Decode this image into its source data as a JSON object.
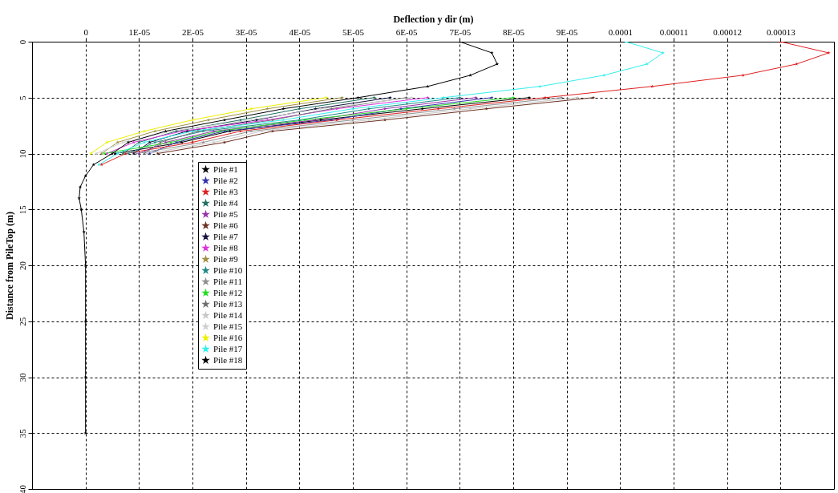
{
  "chart_data": {
    "type": "line",
    "xlabel": "Deflection y dir (m)",
    "ylabel": "Distance from PileTop (m)",
    "xlim": [
      -1e-05,
      0.00014
    ],
    "ylim": [
      40,
      0
    ],
    "xticks": [
      0,
      {
        "value": 1e-05,
        "label": "1E-05"
      },
      {
        "value": 2e-05,
        "label": "2E-05"
      },
      {
        "value": 3e-05,
        "label": "3E-05"
      },
      {
        "value": 4e-05,
        "label": "4E-05"
      },
      {
        "value": 5e-05,
        "label": "5E-05"
      },
      {
        "value": 6e-05,
        "label": "6E-05"
      },
      {
        "value": 7e-05,
        "label": "7E-05"
      },
      {
        "value": 8e-05,
        "label": "8E-05"
      },
      {
        "value": 9e-05,
        "label": "9E-05"
      },
      0.0001,
      0.00011,
      0.00012,
      0.00013
    ],
    "yticks": [
      0,
      5,
      10,
      15,
      20,
      25,
      30,
      35,
      40
    ],
    "grid": true,
    "legend": "top left",
    "marker": "star",
    "line_style": "solid",
    "series": [
      {
        "name": "Pile #1",
        "color": "#000000",
        "x": [
          null,
          null,
          null,
          null,
          null,
          8.3e-05,
          6.3e-05,
          4.4e-05,
          2.7e-05,
          1.8e-05,
          5.5e-06,
          null,
          null,
          null,
          null,
          null,
          null,
          null,
          null,
          null,
          null
        ],
        "values": [
          null,
          null,
          null,
          null,
          null,
          5,
          6,
          7,
          8,
          9,
          10,
          null,
          null,
          null,
          null,
          null,
          null,
          null,
          null,
          null,
          null
        ]
      },
      {
        "name": "Pile #2",
        "color": "#3333aa",
        "x": [
          null,
          null,
          null,
          null,
          null,
          7.6e-05,
          5.9e-05,
          4.6e-05,
          2.6e-05,
          1.7e-05,
          1.2e-05,
          null,
          null,
          null,
          null,
          null,
          null,
          null,
          null,
          null,
          null
        ],
        "values": [
          null,
          null,
          null,
          null,
          null,
          5,
          6,
          7,
          8,
          9,
          10,
          null,
          null,
          null,
          null,
          null,
          null,
          null,
          null,
          null,
          null
        ]
      },
      {
        "name": "Pile #3",
        "color": "#e02020",
        "x": [
          0.00013,
          0.000139,
          0.000133,
          0.000123,
          0.000106,
          8.6e-05,
          6.6e-05,
          4.7e-05,
          2.9e-05,
          2e-05,
          7.5e-06,
          3e-06,
          null,
          null,
          null,
          null,
          null,
          null,
          null,
          null,
          null
        ],
        "values": [
          0,
          1,
          2,
          3,
          4,
          5,
          6,
          7,
          8,
          9,
          10,
          11,
          null,
          null,
          null,
          null,
          null,
          null,
          null,
          null,
          null
        ]
      },
      {
        "name": "Pile #4",
        "color": "#207060",
        "x": [
          null,
          null,
          null,
          null,
          null,
          5.4e-05,
          4e-05,
          2.9e-05,
          1.7e-05,
          1e-05,
          7e-06,
          null,
          null,
          null,
          null,
          null,
          null,
          null,
          null,
          null,
          null
        ],
        "values": [
          null,
          null,
          null,
          null,
          null,
          5,
          6,
          7,
          8,
          9,
          10,
          null,
          null,
          null,
          null,
          null,
          null,
          null,
          null,
          null,
          null
        ]
      },
      {
        "name": "Pile #5",
        "color": "#9933aa",
        "x": [
          null,
          null,
          null,
          null,
          null,
          7.3e-05,
          5.6e-05,
          4.3e-05,
          2.4e-05,
          1.5e-05,
          1e-05,
          null,
          null,
          null,
          null,
          null,
          null,
          null,
          null,
          null,
          null
        ],
        "values": [
          null,
          null,
          null,
          null,
          null,
          5,
          6,
          7,
          8,
          9,
          10,
          null,
          null,
          null,
          null,
          null,
          null,
          null,
          null,
          null,
          null
        ]
      },
      {
        "name": "Pile #6",
        "color": "#6b3020",
        "x": [
          null,
          null,
          null,
          null,
          null,
          9.5e-05,
          7.5e-05,
          5.6e-05,
          3.5e-05,
          2.6e-05,
          1.35e-05,
          null,
          null,
          null,
          null,
          null,
          null,
          null,
          null,
          null,
          null
        ],
        "values": [
          null,
          null,
          null,
          null,
          null,
          5,
          6,
          7,
          8,
          9,
          10,
          null,
          null,
          null,
          null,
          null,
          null,
          null,
          null,
          null,
          null
        ]
      },
      {
        "name": "Pile #7",
        "color": "#101040",
        "x": [
          null,
          null,
          null,
          null,
          null,
          5.7e-05,
          4.3e-05,
          3.2e-05,
          1.9e-05,
          1.2e-05,
          9e-06,
          null,
          null,
          null,
          null,
          null,
          null,
          null,
          null,
          null,
          null
        ],
        "values": [
          null,
          null,
          null,
          null,
          null,
          5,
          6,
          7,
          8,
          9,
          10,
          null,
          null,
          null,
          null,
          null,
          null,
          null,
          null,
          null,
          null
        ]
      },
      {
        "name": "Pile #8",
        "color": "#dd33dd",
        "x": [
          null,
          null,
          null,
          null,
          null,
          6.4e-05,
          4.7e-05,
          3.4e-05,
          1.8e-05,
          9e-06,
          4e-06,
          null,
          null,
          null,
          null,
          null,
          null,
          null,
          null,
          null,
          null
        ],
        "values": [
          null,
          null,
          null,
          null,
          null,
          5,
          6,
          7,
          8,
          9,
          10,
          null,
          null,
          null,
          null,
          null,
          null,
          null,
          null,
          null,
          null
        ]
      },
      {
        "name": "Pile #9",
        "color": "#a09040",
        "x": [
          null,
          null,
          null,
          null,
          null,
          4.8e-05,
          3.4e-05,
          2.3e-05,
          1.3e-05,
          6e-06,
          3e-06,
          null,
          null,
          null,
          null,
          null,
          null,
          null,
          null,
          null,
          null
        ],
        "values": [
          null,
          null,
          null,
          null,
          null,
          5,
          6,
          7,
          8,
          9,
          10,
          null,
          null,
          null,
          null,
          null,
          null,
          null,
          null,
          null,
          null
        ]
      },
      {
        "name": "Pile #10",
        "color": "#208888",
        "x": [
          null,
          null,
          null,
          null,
          null,
          7e-05,
          5.3e-05,
          4e-05,
          2.2e-05,
          1.3e-05,
          8e-06,
          null,
          null,
          null,
          null,
          null,
          null,
          null,
          null,
          null,
          null
        ],
        "values": [
          null,
          null,
          null,
          null,
          null,
          5,
          6,
          7,
          8,
          9,
          10,
          null,
          null,
          null,
          null,
          null,
          null,
          null,
          null,
          null,
          null
        ]
      },
      {
        "name": "Pile #11",
        "color": "#909090",
        "x": [
          null,
          null,
          null,
          null,
          null,
          8.9e-05,
          6.9e-05,
          5e-05,
          3.1e-05,
          2.2e-05,
          9.5e-06,
          null,
          null,
          null,
          null,
          null,
          null,
          null,
          null,
          null,
          null
        ],
        "values": [
          null,
          null,
          null,
          null,
          null,
          5,
          6,
          7,
          8,
          9,
          10,
          null,
          null,
          null,
          null,
          null,
          null,
          null,
          null,
          null,
          null
        ]
      },
      {
        "name": "Pile #12",
        "color": "#22dd22",
        "x": [
          null,
          null,
          null,
          null,
          null,
          8e-05,
          6e-05,
          4.1e-05,
          2.5e-05,
          1.6e-05,
          3.5e-06,
          null,
          null,
          null,
          null,
          null,
          null,
          null,
          null,
          null,
          null
        ],
        "values": [
          null,
          null,
          null,
          null,
          null,
          5,
          6,
          7,
          8,
          9,
          10,
          null,
          null,
          null,
          null,
          null,
          null,
          null,
          null,
          null,
          null
        ]
      },
      {
        "name": "Pile #13",
        "color": "#707070",
        "x": [
          null,
          null,
          null,
          null,
          null,
          6e-05,
          4.6e-05,
          3.5e-05,
          2.1e-05,
          1.4e-05,
          1.1e-05,
          null,
          null,
          null,
          null,
          null,
          null,
          null,
          null,
          null,
          null
        ],
        "values": [
          null,
          null,
          null,
          null,
          null,
          5,
          6,
          7,
          8,
          9,
          10,
          null,
          null,
          null,
          null,
          null,
          null,
          null,
          null,
          null,
          null
        ]
      },
      {
        "name": "Pile #14",
        "color": "#c8c8c8",
        "x": [
          null,
          null,
          null,
          null,
          null,
          9.2e-05,
          7.2e-05,
          5.3e-05,
          3.3e-05,
          2.4e-05,
          1.15e-05,
          null,
          null,
          null,
          null,
          null,
          null,
          null,
          null,
          null,
          null
        ],
        "values": [
          null,
          null,
          null,
          null,
          null,
          5,
          6,
          7,
          8,
          9,
          10,
          null,
          null,
          null,
          null,
          null,
          null,
          null,
          null,
          null,
          null
        ]
      },
      {
        "name": "Pile #15",
        "color": "#d0d0d0",
        "x": [
          null,
          null,
          null,
          null,
          null,
          6.1e-05,
          4.4e-05,
          3.1e-05,
          1.6e-05,
          7e-06,
          2e-06,
          null,
          null,
          null,
          null,
          null,
          null,
          null,
          null,
          null,
          null
        ],
        "values": [
          null,
          null,
          null,
          null,
          null,
          5,
          6,
          7,
          8,
          9,
          10,
          null,
          null,
          null,
          null,
          null,
          null,
          null,
          null,
          null,
          null
        ]
      },
      {
        "name": "Pile #16",
        "color": "#eeee00",
        "x": [
          null,
          null,
          null,
          null,
          null,
          4.5e-05,
          3.1e-05,
          2e-05,
          1.1e-05,
          4e-06,
          1e-06,
          null,
          null,
          null,
          null,
          null,
          null,
          null,
          null,
          null,
          null
        ],
        "values": [
          null,
          null,
          null,
          null,
          null,
          5,
          6,
          7,
          8,
          9,
          10,
          null,
          null,
          null,
          null,
          null,
          null,
          null,
          null,
          null,
          null
        ]
      },
      {
        "name": "Pile #17",
        "color": "#33eeee",
        "x": [
          0.000101,
          0.000108,
          0.000105,
          9.7e-05,
          8.5e-05,
          6.7e-05,
          5e-05,
          3.7e-05,
          2e-05,
          1.1e-05,
          6e-06,
          2.5e-06,
          null,
          null,
          null,
          null,
          null,
          null,
          null,
          null,
          null
        ],
        "values": [
          0,
          1,
          2,
          3,
          4,
          5,
          6,
          7,
          8,
          9,
          10,
          11,
          null,
          null,
          null,
          null,
          null,
          null,
          null,
          null,
          null
        ]
      },
      {
        "name": "Pile #18",
        "color": "#000000",
        "x": [
          7e-05,
          7.6e-05,
          7.7e-05,
          7.2e-05,
          6.4e-05,
          5.1e-05,
          3.7e-05,
          2.6e-05,
          1.5e-05,
          8e-06,
          5e-06,
          1.5e-06,
          0,
          -1e-06,
          -1.2e-06,
          -8e-07,
          -3e-07,
          0,
          0,
          0,
          0
        ],
        "values": [
          0,
          1,
          2,
          3,
          4,
          5,
          6,
          7,
          8,
          9,
          10,
          11,
          12,
          13,
          14,
          15,
          17,
          20,
          25,
          30,
          35
        ]
      }
    ]
  }
}
